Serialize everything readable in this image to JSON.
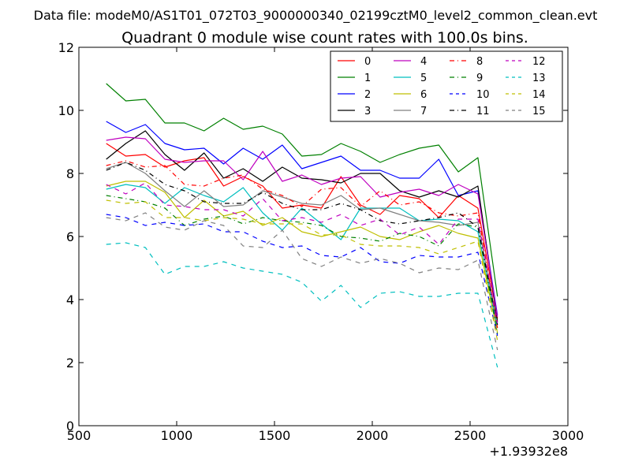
{
  "suptitle": "Data file: modeM0/AS1T01_072T03_9000000340_02199cztM0_level2_common_clean.evt",
  "chart_data": {
    "type": "line",
    "title": "Quadrant 0 module wise count rates with 100.0s bins.",
    "xlabel": "",
    "ylabel": "",
    "x_offset_label": "+1.93932e8",
    "xlim": [
      500,
      3000
    ],
    "ylim": [
      0,
      12
    ],
    "xticks": [
      500,
      1000,
      1500,
      2000,
      2500,
      3000
    ],
    "yticks": [
      0,
      2,
      4,
      6,
      8,
      10,
      12
    ],
    "grid": false,
    "legend_position": "upper-right",
    "legend_columns": 4,
    "x": [
      640,
      740,
      840,
      940,
      1040,
      1140,
      1240,
      1340,
      1440,
      1540,
      1640,
      1740,
      1840,
      1940,
      2040,
      2140,
      2240,
      2340,
      2440,
      2540,
      2640
    ],
    "series": [
      {
        "name": "0",
        "color": "#ff0000",
        "style": "solid",
        "values": [
          8.95,
          8.55,
          8.6,
          8.2,
          8.4,
          8.5,
          7.6,
          7.9,
          7.6,
          6.9,
          7.0,
          6.9,
          7.9,
          7.0,
          6.7,
          7.3,
          7.2,
          6.6,
          7.3,
          6.9,
          3.4
        ]
      },
      {
        "name": "1",
        "color": "#008000",
        "style": "solid",
        "values": [
          10.85,
          10.3,
          10.35,
          9.6,
          9.6,
          9.35,
          9.75,
          9.4,
          9.5,
          9.25,
          8.55,
          8.6,
          8.95,
          8.7,
          8.35,
          8.6,
          8.8,
          8.9,
          8.05,
          8.5,
          4.1
        ]
      },
      {
        "name": "2",
        "color": "#0000ff",
        "style": "solid",
        "values": [
          9.65,
          9.3,
          9.55,
          8.95,
          8.75,
          8.8,
          8.3,
          8.8,
          8.45,
          8.9,
          8.15,
          8.35,
          8.55,
          8.1,
          8.1,
          7.85,
          7.85,
          8.45,
          7.3,
          7.45,
          3.5
        ]
      },
      {
        "name": "3",
        "color": "#000000",
        "style": "solid",
        "values": [
          8.45,
          8.95,
          9.35,
          8.6,
          8.1,
          8.65,
          7.85,
          8.15,
          7.75,
          8.2,
          7.85,
          7.8,
          7.7,
          8.0,
          8.0,
          7.45,
          7.25,
          7.45,
          7.25,
          7.6,
          3.3
        ]
      },
      {
        "name": "4",
        "color": "#bf00bf",
        "style": "solid",
        "values": [
          9.05,
          9.15,
          9.1,
          8.45,
          8.35,
          8.4,
          8.4,
          7.8,
          8.7,
          7.75,
          7.95,
          7.65,
          7.85,
          7.9,
          7.25,
          7.4,
          7.5,
          7.3,
          7.65,
          7.35,
          3.45
        ]
      },
      {
        "name": "5",
        "color": "#00bfbf",
        "style": "solid",
        "values": [
          7.5,
          7.65,
          7.55,
          7.05,
          7.55,
          7.3,
          7.1,
          7.55,
          6.75,
          6.2,
          6.9,
          6.4,
          5.9,
          6.9,
          6.9,
          6.9,
          6.5,
          6.55,
          6.5,
          6.15,
          3.1
        ]
      },
      {
        "name": "6",
        "color": "#bfbf00",
        "style": "solid",
        "values": [
          7.6,
          7.75,
          7.75,
          7.4,
          6.6,
          7.15,
          6.65,
          6.8,
          6.35,
          6.6,
          6.15,
          6.0,
          6.15,
          6.3,
          6.0,
          5.9,
          6.15,
          6.35,
          6.1,
          5.95,
          2.95
        ]
      },
      {
        "name": "7",
        "color": "#808080",
        "style": "solid",
        "values": [
          8.15,
          8.35,
          8.0,
          7.45,
          6.95,
          7.45,
          6.95,
          7.0,
          7.45,
          7.25,
          7.05,
          7.0,
          7.3,
          6.85,
          6.9,
          6.7,
          6.5,
          6.45,
          6.35,
          6.45,
          3.2
        ]
      },
      {
        "name": "8",
        "color": "#ff0000",
        "style": "dashdot",
        "values": [
          8.25,
          8.4,
          8.2,
          8.25,
          7.65,
          7.6,
          7.85,
          7.95,
          7.5,
          7.3,
          6.95,
          7.5,
          7.55,
          6.95,
          7.45,
          7.0,
          7.1,
          6.75,
          6.65,
          6.75,
          3.1
        ]
      },
      {
        "name": "9",
        "color": "#008000",
        "style": "dashdot",
        "values": [
          7.3,
          7.2,
          7.1,
          6.9,
          6.35,
          6.55,
          6.65,
          6.4,
          6.6,
          6.5,
          6.45,
          6.35,
          6.0,
          5.95,
          5.85,
          6.1,
          6.0,
          5.7,
          6.4,
          6.3,
          2.9
        ]
      },
      {
        "name": "10",
        "color": "#0000ff",
        "style": "dashed",
        "values": [
          6.7,
          6.6,
          6.35,
          6.45,
          6.35,
          6.4,
          6.15,
          6.15,
          5.85,
          5.65,
          5.7,
          5.4,
          5.35,
          5.65,
          5.2,
          5.15,
          5.4,
          5.35,
          5.35,
          5.5,
          2.85
        ]
      },
      {
        "name": "11",
        "color": "#000000",
        "style": "dashdot",
        "values": [
          8.1,
          8.35,
          8.1,
          7.65,
          7.45,
          7.1,
          7.05,
          7.05,
          7.4,
          7.05,
          6.85,
          6.85,
          7.05,
          6.85,
          6.5,
          6.4,
          6.5,
          6.6,
          6.75,
          6.3,
          3.2
        ]
      },
      {
        "name": "12",
        "color": "#bf00bf",
        "style": "dashed",
        "values": [
          7.65,
          7.35,
          7.7,
          7.0,
          6.95,
          6.85,
          6.85,
          6.65,
          7.2,
          6.5,
          6.6,
          6.45,
          6.7,
          6.35,
          6.55,
          6.05,
          6.3,
          5.75,
          6.55,
          6.55,
          3.25
        ]
      },
      {
        "name": "13",
        "color": "#00bfbf",
        "style": "dashed",
        "values": [
          5.75,
          5.8,
          5.65,
          4.8,
          5.05,
          5.05,
          5.2,
          5.0,
          4.9,
          4.8,
          4.55,
          3.95,
          4.45,
          3.75,
          4.2,
          4.25,
          4.1,
          4.1,
          4.2,
          4.2,
          1.85
        ]
      },
      {
        "name": "14",
        "color": "#bfbf00",
        "style": "dashed",
        "values": [
          7.15,
          7.05,
          7.1,
          6.6,
          6.6,
          6.5,
          6.6,
          6.55,
          6.4,
          6.4,
          6.4,
          6.05,
          6.05,
          5.75,
          5.7,
          5.7,
          5.65,
          5.45,
          5.65,
          5.85,
          2.7
        ]
      },
      {
        "name": "15",
        "color": "#808080",
        "style": "dashed",
        "values": [
          6.6,
          6.5,
          6.75,
          6.3,
          6.2,
          6.5,
          6.35,
          5.7,
          5.65,
          6.2,
          5.3,
          5.05,
          5.35,
          5.15,
          5.3,
          5.15,
          4.85,
          5.0,
          4.95,
          5.25,
          2.4
        ]
      }
    ]
  }
}
